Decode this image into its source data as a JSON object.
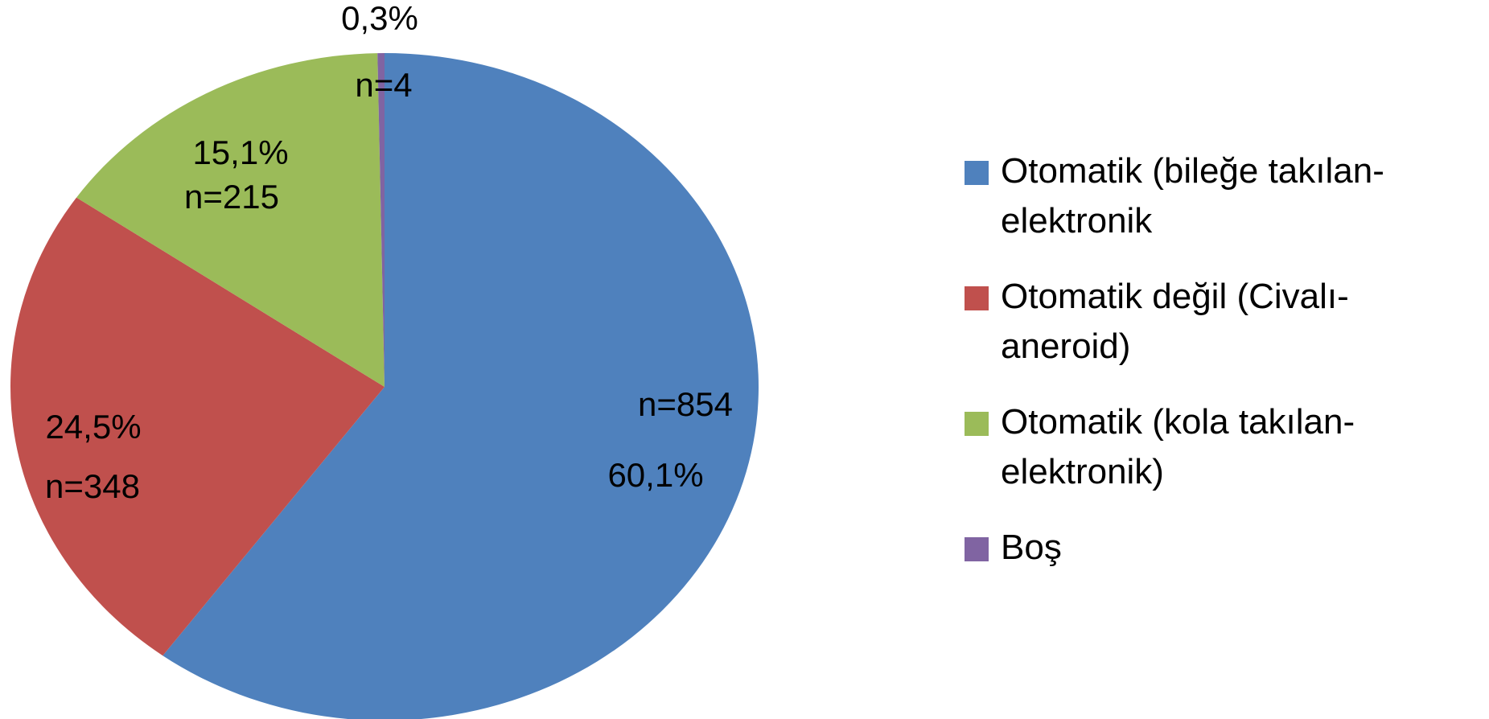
{
  "chart_data": {
    "type": "pie",
    "series": [
      {
        "categories": [
          "Otomatik (bileğe takılan-elektronik",
          "Otomatik değil (Civalı-aneroid)",
          "Otomatik (kola takılan-elektronik)",
          "Boş"
        ],
        "values": [
          60.1,
          24.5,
          15.1,
          0.3
        ],
        "value_labels": [
          "60,1%",
          "24,5%",
          "15,1%",
          "0,3%"
        ],
        "counts": [
          854,
          348,
          215,
          4
        ],
        "count_labels": [
          "n=854",
          "n=348",
          "n=215",
          "n=4"
        ],
        "colors": [
          "#4f81bd",
          "#c0504d",
          "#9bbb59",
          "#8064a2"
        ]
      }
    ],
    "legend": "right"
  }
}
